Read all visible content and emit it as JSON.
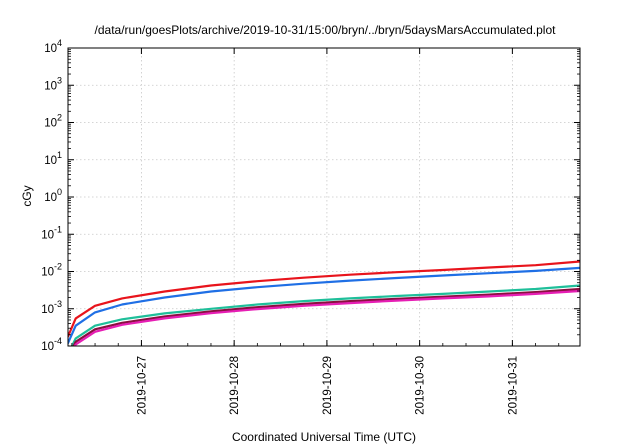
{
  "chart_data": {
    "type": "line",
    "title": "/data/run/goesPlots/archive/2019-10-31/15:00/bryn/../bryn/5daysMarsAccumulated.plot",
    "xlabel": "Coordinated Universal Time (UTC)",
    "ylabel": "cGy",
    "y_scale": "log",
    "ylim": [
      0.0001,
      10000
    ],
    "xlim": [
      "2019-10-26T05:00",
      "2019-10-31T17:30"
    ],
    "grid": true,
    "x_ticks": [
      "2019-10-27",
      "2019-10-28",
      "2019-10-29",
      "2019-10-30",
      "2019-10-31"
    ],
    "y_ticks": [
      {
        "base": "10",
        "exp": "-4"
      },
      {
        "base": "10",
        "exp": "-3"
      },
      {
        "base": "10",
        "exp": "-2"
      },
      {
        "base": "10",
        "exp": "-1"
      },
      {
        "base": "10",
        "exp": "0"
      },
      {
        "base": "10",
        "exp": "1"
      },
      {
        "base": "10",
        "exp": "2"
      },
      {
        "base": "10",
        "exp": "3"
      },
      {
        "base": "10",
        "exp": "4"
      }
    ],
    "x": [
      "2019-10-26T05:00",
      "2019-10-26T07:00",
      "2019-10-26T12:00",
      "2019-10-26T19:00",
      "2019-10-27T06:00",
      "2019-10-27T18:00",
      "2019-10-28T06:00",
      "2019-10-28T18:00",
      "2019-10-29T06:00",
      "2019-10-29T18:00",
      "2019-10-30T06:00",
      "2019-10-30T18:00",
      "2019-10-31T06:00",
      "2019-10-31T17:30"
    ],
    "series": [
      {
        "color": "#e8141c",
        "values": [
          0.00018,
          0.00055,
          0.0012,
          0.0019,
          0.0029,
          0.0042,
          0.0055,
          0.0068,
          0.0082,
          0.0096,
          0.011,
          0.0128,
          0.0148,
          0.0185
        ]
      },
      {
        "color": "#1f6fe5",
        "values": [
          0.00012,
          0.00035,
          0.0008,
          0.0013,
          0.002,
          0.0029,
          0.0038,
          0.0047,
          0.0057,
          0.0067,
          0.0078,
          0.009,
          0.0104,
          0.0125
        ]
      },
      {
        "color": "#1fbf9a",
        "values": [
          6e-05,
          0.00016,
          0.00035,
          0.00052,
          0.00075,
          0.001,
          0.0013,
          0.0016,
          0.0019,
          0.0022,
          0.0025,
          0.0029,
          0.0034,
          0.0042
        ]
      },
      {
        "color": "#8a0f3f",
        "values": [
          5e-05,
          0.00013,
          0.00028,
          0.00042,
          0.00062,
          0.00085,
          0.0011,
          0.00135,
          0.0016,
          0.00185,
          0.0021,
          0.0024,
          0.0028,
          0.0034
        ]
      },
      {
        "color": "#e61eb4",
        "values": [
          4.5e-05,
          0.00011,
          0.00024,
          0.00037,
          0.00055,
          0.00076,
          0.00098,
          0.0012,
          0.00142,
          0.00165,
          0.0019,
          0.00215,
          0.0025,
          0.003
        ]
      }
    ]
  }
}
